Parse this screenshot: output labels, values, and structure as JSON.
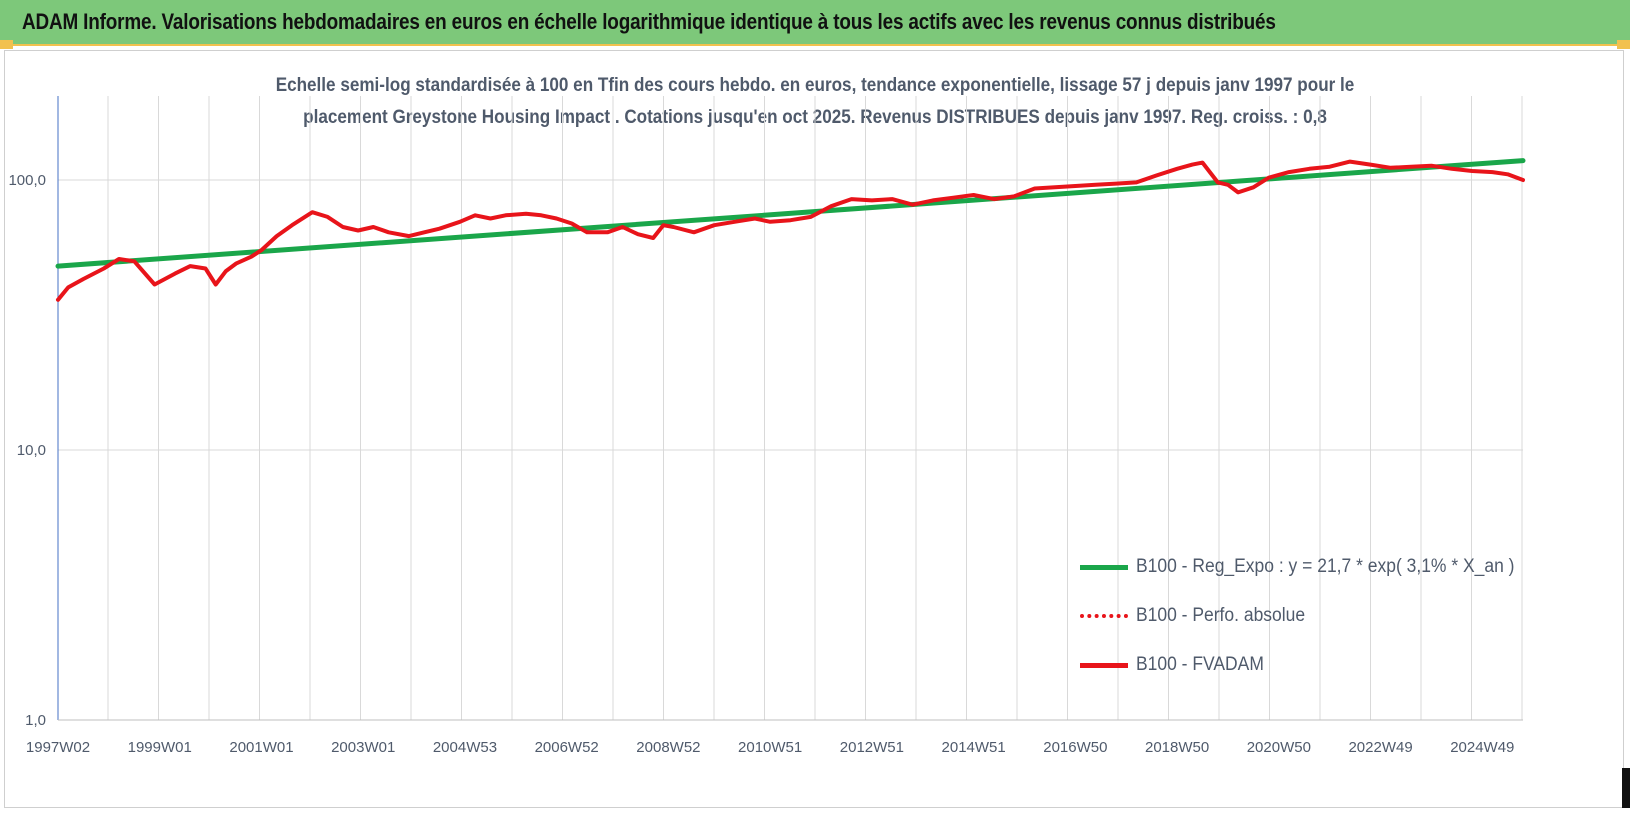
{
  "banner": {
    "title": "ADAM Informe. Valorisations hebdomadaires en euros en échelle logarithmique identique à tous les actifs avec les revenus connus distribués"
  },
  "colors": {
    "banner_bg": "#7dc87a",
    "accent_yellow": "#f2c14e",
    "trend_green": "#1aa64a",
    "fvadam_red": "#e8141a",
    "axis_text": "#4f5a6b",
    "grid": "#d9d9d9"
  },
  "chart_data": {
    "type": "line",
    "title_lines": [
      "Echelle semi-log standardisée à 100 en Tfin des cours hebdo. en euros, tendance exponentielle, lissage 57 j depuis janv 1997 pour le",
      "placement Greystone Housing Impact . Cotations jusqu'en oct 2025. Revenus DISTRIBUES depuis janv 1997. Reg. croiss. : 0,8"
    ],
    "y_scale": "log",
    "ylim": [
      1,
      180
    ],
    "y_ticks": [
      {
        "value": 1,
        "label": "1,0"
      },
      {
        "value": 10,
        "label": "10,0"
      },
      {
        "value": 100,
        "label": "100,0"
      }
    ],
    "xlim": [
      1997.0,
      2025.8
    ],
    "x_ticks": [
      {
        "value": 1997.0,
        "label": "1997W02"
      },
      {
        "value": 1999.0,
        "label": "1999W01"
      },
      {
        "value": 2001.0,
        "label": "2001W01"
      },
      {
        "value": 2003.0,
        "label": "2003W01"
      },
      {
        "value": 2005.0,
        "label": "2004W53"
      },
      {
        "value": 2007.0,
        "label": "2006W52"
      },
      {
        "value": 2009.0,
        "label": "2008W52"
      },
      {
        "value": 2011.0,
        "label": "2010W51"
      },
      {
        "value": 2013.0,
        "label": "2012W51"
      },
      {
        "value": 2015.0,
        "label": "2014W51"
      },
      {
        "value": 2017.0,
        "label": "2016W50"
      },
      {
        "value": 2019.0,
        "label": "2018W50"
      },
      {
        "value": 2021.0,
        "label": "2020W50"
      },
      {
        "value": 2023.0,
        "label": "2022W49"
      },
      {
        "value": 2025.0,
        "label": "2024W49"
      }
    ],
    "grid": true,
    "legend_position": "bottom-right",
    "series": [
      {
        "name": "B100 - Reg_Expo : y = 21,7 * exp( 3,1% * X_an )",
        "style": "solid-green",
        "x": [
          1997.0,
          2025.8
        ],
        "values": [
          48,
          118
        ]
      },
      {
        "name": "B100 - Perfo. absolue",
        "style": "dotted-red",
        "x": [],
        "values": []
      },
      {
        "name": "B100 - FVADAM",
        "style": "solid-red",
        "x": [
          1997.0,
          1997.2,
          1997.5,
          1997.9,
          1998.2,
          1998.5,
          1998.9,
          1999.3,
          1999.6,
          1999.9,
          2000.1,
          2000.3,
          2000.5,
          2000.8,
          2001.0,
          2001.3,
          2001.6,
          2002.0,
          2002.3,
          2002.6,
          2002.9,
          2003.2,
          2003.5,
          2003.9,
          2004.2,
          2004.5,
          2004.9,
          2005.2,
          2005.5,
          2005.8,
          2006.2,
          2006.5,
          2006.8,
          2007.1,
          2007.4,
          2007.8,
          2008.1,
          2008.4,
          2008.7,
          2008.9,
          2009.1,
          2009.5,
          2009.9,
          2010.3,
          2010.7,
          2011.0,
          2011.4,
          2011.8,
          2012.2,
          2012.6,
          2013.0,
          2013.4,
          2013.8,
          2014.2,
          2014.6,
          2015.0,
          2015.4,
          2015.8,
          2016.2,
          2016.6,
          2017.0,
          2017.4,
          2017.8,
          2018.2,
          2018.6,
          2019.0,
          2019.3,
          2019.5,
          2019.8,
          2020.0,
          2020.2,
          2020.5,
          2020.8,
          2021.2,
          2021.6,
          2022.0,
          2022.4,
          2022.8,
          2023.2,
          2023.6,
          2024.0,
          2024.4,
          2024.8,
          2025.2,
          2025.5,
          2025.8
        ],
        "values": [
          36,
          40,
          43,
          47,
          51,
          50,
          41,
          45,
          48,
          47,
          41,
          46,
          49,
          52,
          55,
          62,
          68,
          76,
          73,
          67,
          65,
          67,
          64,
          62,
          64,
          66,
          70,
          74,
          72,
          74,
          75,
          74,
          72,
          69,
          64,
          64,
          67,
          63,
          61,
          68,
          67,
          64,
          68,
          70,
          72,
          70,
          71,
          73,
          80,
          85,
          84,
          85,
          81,
          84,
          86,
          88,
          85,
          87,
          93,
          94,
          95,
          96,
          97,
          98,
          104,
          110,
          114,
          116,
          98,
          96,
          90,
          94,
          102,
          107,
          110,
          112,
          117,
          114,
          111,
          112,
          113,
          110,
          108,
          107,
          105,
          100
        ]
      }
    ]
  }
}
